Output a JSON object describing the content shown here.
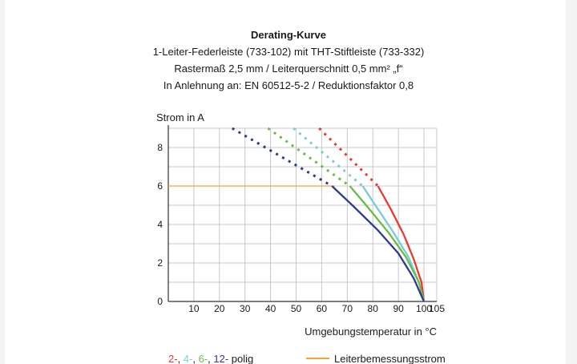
{
  "chart_data": {
    "type": "line",
    "title": "Derating-Kurve",
    "subtitle_lines": [
      "1-Leiter-Federleiste (733-102) mit THT-Stiftleiste (733-332)",
      "Rastermaß 2,5 mm / Leiterquerschnitt 0,5 mm² „f“",
      "In Anlehnung an: EN 60512-5-2 / Reduktionsfaktor 0,8"
    ],
    "ylabel": "Strom in A",
    "xlabel": "Umgebungstemperatur in °C",
    "xlim": [
      0,
      105
    ],
    "ylim": [
      0,
      9
    ],
    "x_ticks": [
      "10",
      "20",
      "30",
      "40",
      "50",
      "60",
      "70",
      "80",
      "90",
      "100",
      "105"
    ],
    "x_tick_values": [
      10,
      20,
      30,
      40,
      50,
      60,
      70,
      80,
      90,
      100,
      105
    ],
    "y_ticks": [
      "0",
      "2",
      "4",
      "6",
      "8"
    ],
    "y_tick_values": [
      0,
      2,
      4,
      6,
      8
    ],
    "grid": true,
    "legend": {
      "poles": [
        {
          "text": "2-",
          "color": "#e63a2e"
        },
        {
          "text": ", ",
          "color": "#1a1a1a"
        },
        {
          "text": "4-",
          "color": "#79ccd3"
        },
        {
          "text": ", ",
          "color": "#1a1a1a"
        },
        {
          "text": "6-",
          "color": "#6dbb47"
        },
        {
          "text": ", ",
          "color": "#1a1a1a"
        },
        {
          "text": "12-",
          "color": "#2e3a8f"
        },
        {
          "text": " polig",
          "color": "#1a1a1a"
        }
      ],
      "rated_label": "Leiterbemessungsstrom"
    },
    "rated_current": {
      "name": "Leiterbemessungsstrom",
      "color": "#f5a23a",
      "x": [
        0,
        65
      ],
      "y": [
        6,
        6
      ]
    },
    "series": [
      {
        "color": "#e63a2e",
        "dashed": {
          "x": [
            59,
            82
          ],
          "y": [
            9.0,
            6.0
          ]
        },
        "solid": {
          "x": [
            82,
            87,
            92,
            96,
            99,
            100
          ],
          "y": [
            6.0,
            4.8,
            3.5,
            2.2,
            1.0,
            0
          ]
        }
      },
      {
        "color": "#79ccd3",
        "dashed": {
          "x": [
            49,
            76
          ],
          "y": [
            9.0,
            6.0
          ]
        },
        "solid": {
          "x": [
            76,
            82,
            88,
            94,
            98,
            100
          ],
          "y": [
            6.0,
            4.8,
            3.6,
            2.3,
            1.0,
            0
          ]
        }
      },
      {
        "color": "#6dbb47",
        "dashed": {
          "x": [
            39,
            71
          ],
          "y": [
            9.0,
            6.0
          ]
        },
        "solid": {
          "x": [
            71,
            78,
            86,
            93,
            98,
            100
          ],
          "y": [
            6.0,
            4.9,
            3.6,
            2.3,
            1.0,
            0
          ]
        }
      },
      {
        "color": "#2e3a8f",
        "dashed": {
          "x": [
            25,
            64
          ],
          "y": [
            9.0,
            6.0
          ]
        },
        "solid": {
          "x": [
            64,
            72,
            82,
            90,
            96,
            100
          ],
          "y": [
            6.0,
            5.0,
            3.7,
            2.5,
            1.2,
            0
          ]
        }
      }
    ]
  }
}
